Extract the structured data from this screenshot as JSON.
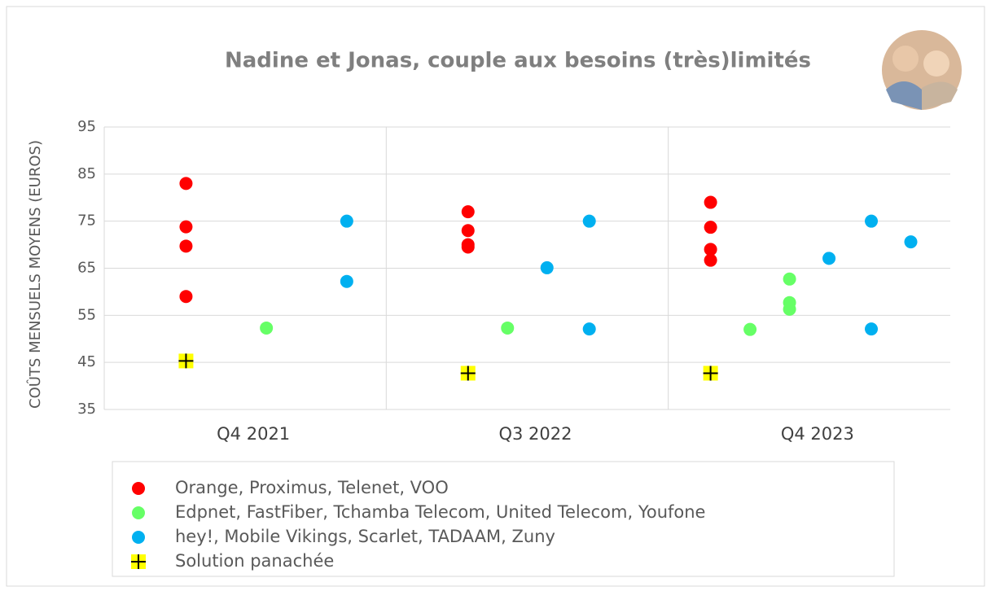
{
  "chart_data": {
    "type": "scatter",
    "title": "Nadine et Jonas, couple aux besoins (très)limités",
    "y_label": "COÛTS MENSUELS MOYENS (EUROS)",
    "categories": [
      "Q4 2021",
      "Q3 2022",
      "Q4 2023"
    ],
    "xlim": [
      0,
      3
    ],
    "ylim": [
      35,
      95
    ],
    "yticks": [
      35,
      45,
      55,
      65,
      75,
      85,
      95
    ],
    "grid": true,
    "legend": "bottom",
    "series": [
      {
        "name": "Orange, Proximus, Telenet, VOO",
        "color": "#ff0000",
        "marker": "circle",
        "x": [
          0.29,
          0.29,
          0.29,
          0.29,
          1.29,
          1.29,
          1.29,
          1.29,
          2.15,
          2.15,
          2.15,
          2.15
        ],
        "values": [
          83,
          73.8,
          69.7,
          59,
          77,
          73,
          70,
          69.5,
          79,
          73.7,
          69,
          66.7
        ]
      },
      {
        "name": "Edpnet, FastFiber, Tchamba Telecom, United Telecom, Youfone",
        "color": "#66ff66",
        "marker": "circle",
        "x": [
          0.575,
          1.43,
          2.29,
          2.43,
          2.43,
          2.43
        ],
        "values": [
          52.3,
          52.3,
          52,
          62.7,
          57.7,
          56.3
        ]
      },
      {
        "name": "hey!, Mobile Vikings, Scarlet, TADAAM, Zuny",
        "color": "#00b0f0",
        "marker": "circle",
        "x": [
          0.86,
          0.86,
          1.57,
          1.72,
          1.72,
          2.57,
          2.72,
          2.72,
          2.86
        ],
        "values": [
          75,
          62.2,
          65.1,
          75,
          52.1,
          67.1,
          75,
          52.1,
          70.6
        ]
      },
      {
        "name": "Solution panachée",
        "color": "#ffff00",
        "marker": "plus",
        "x": [
          0.29,
          1.29,
          2.15
        ],
        "values": [
          45.3,
          42.7,
          42.7
        ]
      }
    ]
  }
}
